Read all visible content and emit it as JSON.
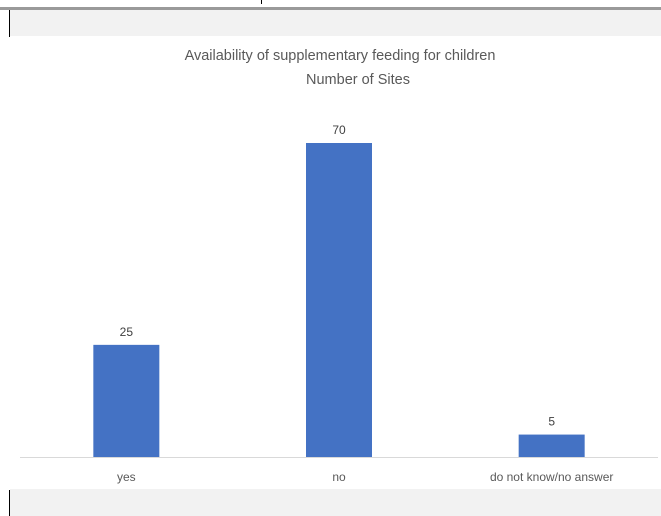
{
  "chart_data": {
    "type": "bar",
    "title": "Availability of supplementary feeding for children",
    "subtitle": "Number of Sites",
    "categories": [
      "yes",
      "no",
      "do not know/no answer"
    ],
    "values": [
      25,
      70,
      5
    ],
    "data_labels": [
      "25",
      "70",
      "5"
    ],
    "xlabel": "",
    "ylabel": "",
    "ylim": [
      0,
      70
    ],
    "grid": false,
    "legend": "none",
    "colors": {
      "bar": "#4472c4",
      "axis": "#d9d9d9",
      "title": "#595959",
      "band": "#f2f2f2"
    }
  }
}
